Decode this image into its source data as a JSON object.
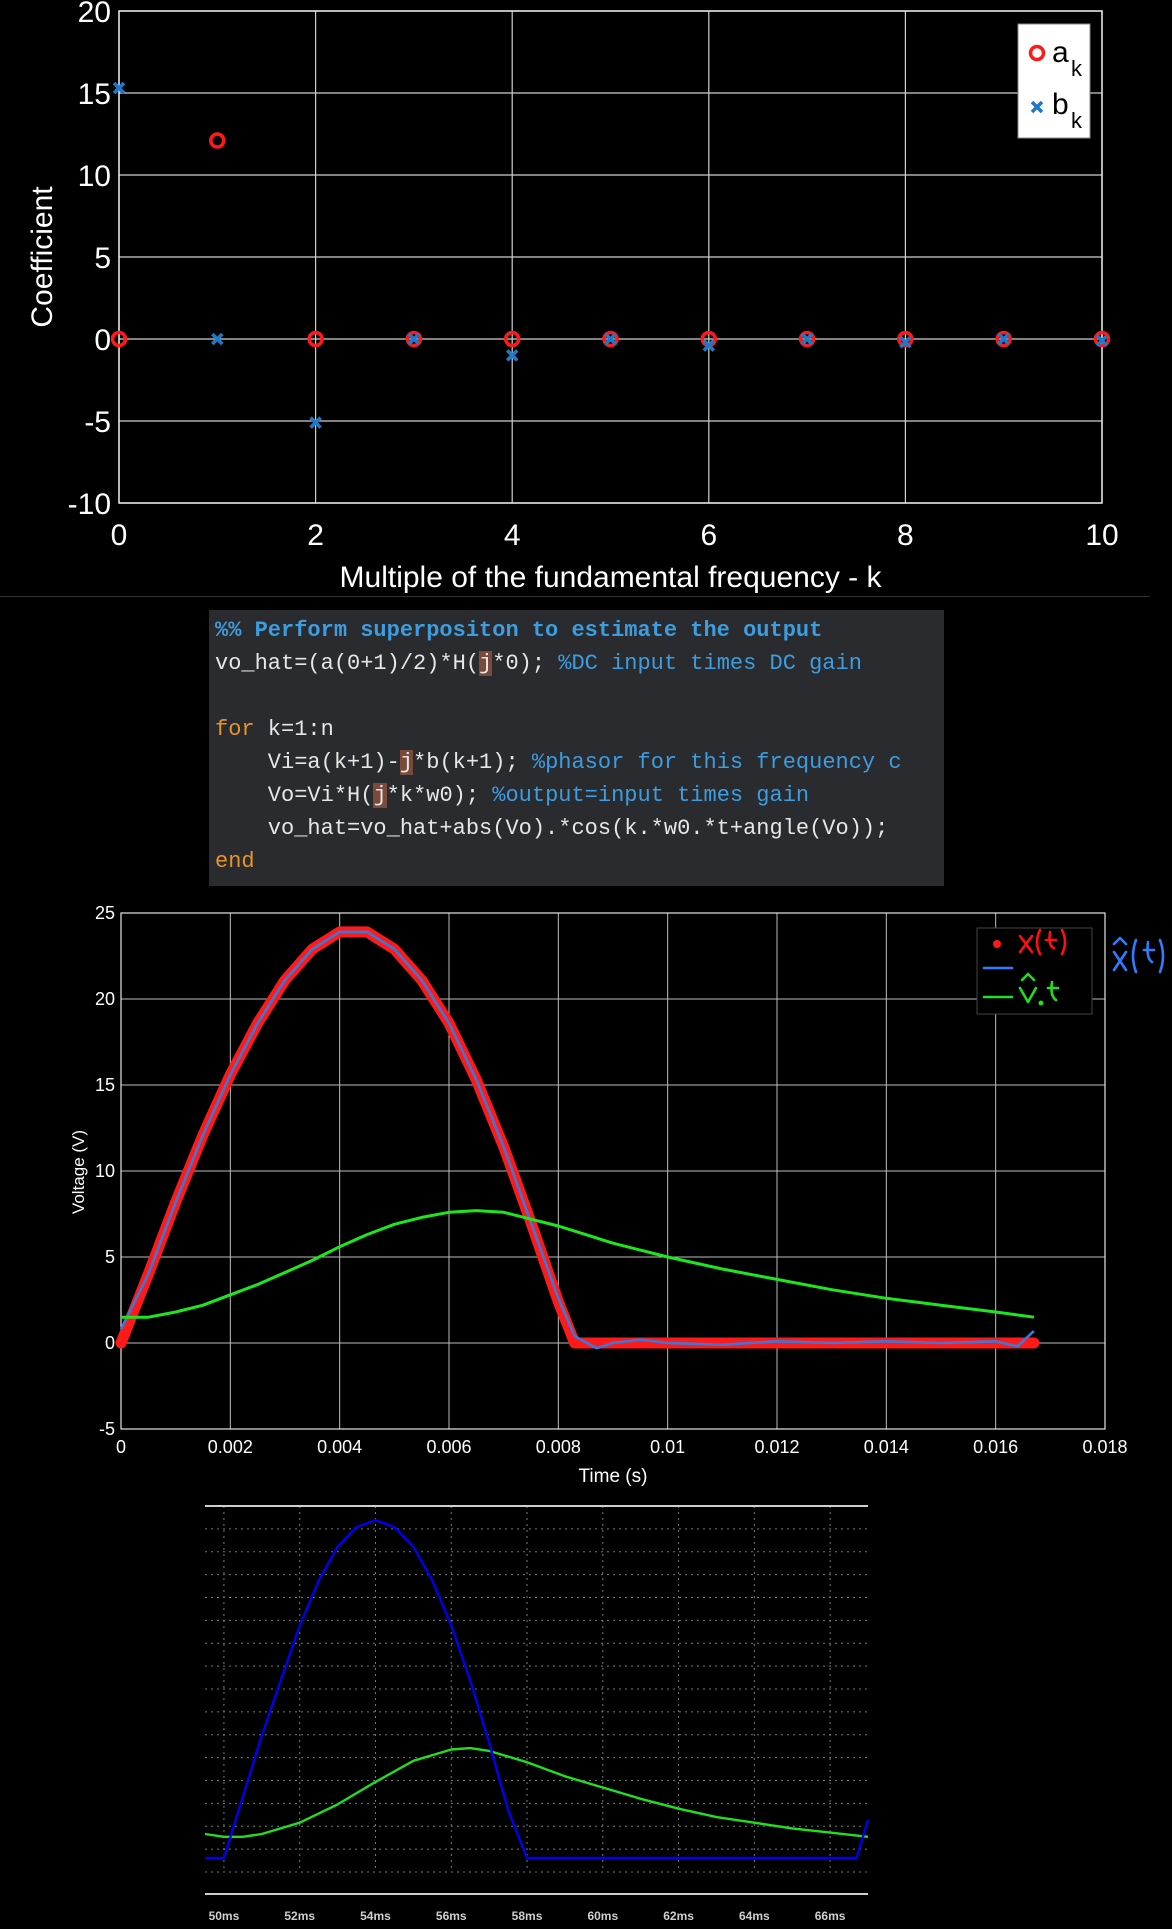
{
  "chart_data": [
    {
      "type": "scatter",
      "xlabel": "Multiple of the fundamental frequency - k",
      "ylabel": "Coefficient",
      "xlim": [
        0,
        10
      ],
      "ylim": [
        -10,
        20
      ],
      "xticks": [
        "0",
        "2",
        "4",
        "6",
        "8",
        "10"
      ],
      "yticks": [
        "-10",
        "-5",
        "0",
        "5",
        "10",
        "15",
        "20"
      ],
      "grid": true,
      "legend_position": "top-right",
      "series": [
        {
          "name": "a",
          "subscript": "k",
          "marker": "circle",
          "color": "#ff1a1a",
          "x": [
            0,
            1,
            2,
            3,
            4,
            5,
            6,
            7,
            8,
            9,
            10
          ],
          "values": [
            0,
            12.1,
            0,
            0,
            0,
            0,
            0,
            0,
            0,
            0,
            0
          ]
        },
        {
          "name": "b",
          "subscript": "k",
          "marker": "x",
          "color": "#1f78c8",
          "x": [
            0,
            1,
            2,
            3,
            4,
            5,
            6,
            7,
            8,
            9,
            10
          ],
          "values": [
            15.3,
            0,
            -5.1,
            0,
            -1.0,
            0,
            -0.4,
            0,
            -0.2,
            0,
            -0.1
          ]
        }
      ]
    },
    {
      "type": "line",
      "xlabel": "Time (s)",
      "ylabel": "Voltage (V)",
      "xlim": [
        0,
        0.018
      ],
      "ylim": [
        -5,
        25
      ],
      "xticks": [
        "0",
        "0.002",
        "0.004",
        "0.006",
        "0.008",
        "0.01",
        "0.012",
        "0.014",
        "0.016",
        "0.018"
      ],
      "yticks": [
        "-5",
        "0",
        "5",
        "10",
        "15",
        "20",
        "25"
      ],
      "grid": true,
      "legend_position": "top-right",
      "series": [
        {
          "color": "#ff1a1a",
          "x": [
            0,
            0.0005,
            0.001,
            0.0015,
            0.002,
            0.0025,
            0.003,
            0.0035,
            0.004,
            0.0045,
            0.005,
            0.0055,
            0.006,
            0.0065,
            0.007,
            0.0075,
            0.008,
            0.0083,
            0.009,
            0.01,
            0.011,
            0.012,
            0.013,
            0.014,
            0.015,
            0.016,
            0.0167
          ],
          "values": [
            0,
            4,
            8.2,
            12.1,
            15.6,
            18.6,
            21.1,
            22.9,
            23.9,
            23.9,
            22.9,
            21.1,
            18.6,
            15.3,
            11.4,
            7,
            2.4,
            0,
            0,
            0,
            0,
            0,
            0,
            0,
            0,
            0,
            0
          ]
        },
        {
          "color": "#3c78d8",
          "x": [
            0,
            0.0005,
            0.001,
            0.0015,
            0.002,
            0.0025,
            0.003,
            0.0035,
            0.004,
            0.0045,
            0.005,
            0.0055,
            0.006,
            0.0065,
            0.007,
            0.0075,
            0.008,
            0.0083,
            0.0087,
            0.009,
            0.0095,
            0.01,
            0.011,
            0.012,
            0.013,
            0.014,
            0.015,
            0.016,
            0.0164,
            0.0167
          ],
          "values": [
            0.8,
            4,
            8.2,
            12.1,
            15.6,
            18.6,
            21.1,
            22.9,
            23.9,
            23.9,
            22.9,
            21.1,
            18.6,
            15.3,
            11.4,
            7,
            2.6,
            0.4,
            -0.3,
            0,
            0.2,
            0,
            -0.1,
            0.1,
            0,
            0.1,
            0,
            0.1,
            -0.2,
            0.7
          ]
        },
        {
          "color": "#1ee61e",
          "x": [
            0,
            0.0005,
            0.001,
            0.0015,
            0.002,
            0.0025,
            0.003,
            0.0035,
            0.004,
            0.0045,
            0.005,
            0.0055,
            0.006,
            0.0065,
            0.007,
            0.0075,
            0.008,
            0.0085,
            0.009,
            0.0095,
            0.01,
            0.011,
            0.012,
            0.013,
            0.014,
            0.015,
            0.016,
            0.0167
          ],
          "values": [
            1.5,
            1.5,
            1.8,
            2.2,
            2.8,
            3.4,
            4.1,
            4.8,
            5.6,
            6.3,
            6.9,
            7.3,
            7.6,
            7.7,
            7.6,
            7.2,
            6.8,
            6.3,
            5.8,
            5.4,
            5.0,
            4.3,
            3.7,
            3.1,
            2.6,
            2.2,
            1.8,
            1.5
          ]
        }
      ]
    },
    {
      "type": "line",
      "xticks": [
        "50ms",
        "52ms",
        "54ms",
        "56ms",
        "58ms",
        "60ms",
        "62ms",
        "64ms",
        "66ms"
      ],
      "xlim": [
        49.5,
        67
      ],
      "ylim": [
        -1,
        25
      ],
      "series": [
        {
          "color": "#0000ee",
          "x": [
            49.5,
            50,
            51,
            52,
            52.5,
            53,
            53.5,
            54,
            54.5,
            55,
            55.5,
            56,
            56.5,
            57,
            57.5,
            58,
            58.2,
            60,
            62,
            64,
            66,
            66.7,
            67
          ],
          "values": [
            0,
            0,
            8.7,
            16.5,
            19.7,
            22.1,
            23.5,
            24,
            23.5,
            22.1,
            19.7,
            16.5,
            12.6,
            8.2,
            3.4,
            0,
            0,
            0,
            0,
            0,
            0,
            0,
            2.7
          ]
        },
        {
          "color": "#22dd22",
          "x": [
            49.5,
            50,
            50.5,
            51,
            52,
            53,
            54,
            55,
            56,
            56.5,
            57,
            58,
            59,
            60,
            61,
            62,
            63,
            64,
            65,
            66,
            67
          ],
          "values": [
            1.7,
            1.5,
            1.5,
            1.7,
            2.5,
            3.8,
            5.4,
            6.9,
            7.7,
            7.8,
            7.6,
            6.8,
            5.8,
            5.0,
            4.2,
            3.5,
            2.9,
            2.5,
            2.1,
            1.8,
            1.5
          ]
        }
      ]
    }
  ],
  "code": {
    "lines": [
      [
        {
          "t": "%% Perform superpositon to estimate the output",
          "c": "cmb"
        }
      ],
      [
        {
          "t": "vo_hat=(a(0+1)/2)*H("
        },
        {
          "t": "j",
          "c": "hl"
        },
        {
          "t": "*0); "
        },
        {
          "t": "%DC input times DC gain",
          "c": "cm"
        }
      ],
      [
        {
          "t": " "
        }
      ],
      [
        {
          "t": "for",
          "c": "kw"
        },
        {
          "t": " k=1:n"
        }
      ],
      [
        {
          "t": "    Vi=a(k+1)-"
        },
        {
          "t": "j",
          "c": "hl"
        },
        {
          "t": "*b(k+1); "
        },
        {
          "t": "%phasor for this frequency c",
          "c": "cm"
        }
      ],
      [
        {
          "t": "    Vo=Vi*H("
        },
        {
          "t": "j",
          "c": "hl"
        },
        {
          "t": "*k*w0); "
        },
        {
          "t": "%output=input times gain",
          "c": "cm"
        }
      ],
      [
        {
          "t": "    vo_hat=vo_hat+abs(Vo).*cos(k.*w0.*t+angle(Vo));"
        }
      ],
      [
        {
          "t": "end",
          "c": "kw"
        }
      ]
    ]
  },
  "legend1": {
    "a": "a",
    "a_sub": "k",
    "b": "b",
    "b_sub": "k"
  }
}
